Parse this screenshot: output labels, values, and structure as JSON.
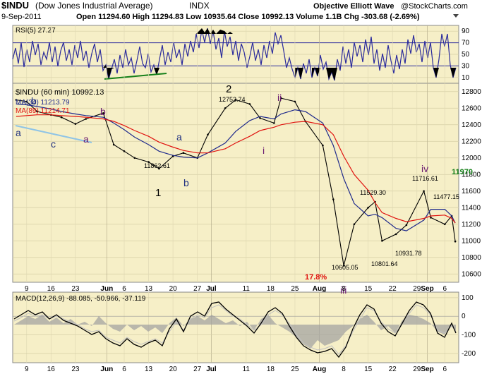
{
  "header": {
    "symbol": "$INDU",
    "name": "(Dow Jones Industrial Average)",
    "exchange": "INDX",
    "date": "9-Sep-2011",
    "quote": "Open 11294.60  High 11294.83  Low 10935.64  Close 10992.13  Volume 1.1B  Chg -303.68 (-2.69%)",
    "brand": "Objective Elliott Wave",
    "site": "@StockCharts.com"
  },
  "colors": {
    "panel_bg": "#f6efc7",
    "price": "#000000",
    "ma34": "#1f2a8c",
    "ma89": "#e0130f",
    "rsi": "#2a2a9c",
    "macd": "#000000",
    "histogram": "#a0a0a0",
    "wave_blue": "#203080",
    "wave_purple": "#6a1a70",
    "wave_green": "#16801a",
    "trendline_blue": "#8fc4e6"
  },
  "rsi_panel": {
    "label": "RSI(5) 27.27",
    "ticks": [
      "90",
      "70",
      "50",
      "30",
      "10"
    ]
  },
  "price_panel": {
    "label": "$INDU (60 min) 10992.13",
    "ma34_label": "MA(34) 11213.79",
    "ma89_label": "MA(89) 11214.71",
    "ticks": [
      "12800",
      "12600",
      "12400",
      "12200",
      "12000",
      "11800",
      "11600",
      "11400",
      "11200",
      "11000",
      "10800",
      "10600"
    ],
    "price_labels": [
      "12753.74",
      "11862.61",
      "11529.30",
      "10605.05",
      "10801.64",
      "10931.78",
      "11716.61",
      "11477.15"
    ],
    "waves": [
      "a",
      "b",
      "c",
      "a",
      "b",
      "a",
      "b",
      "1",
      "2",
      "i",
      "ii",
      "iii",
      "iv"
    ],
    "target": "11970",
    "pct_drop": "17.8%"
  },
  "macd_panel": {
    "label": "MACD(12,26,9) -88.085, -50.966, -37.119",
    "ticks": [
      "100",
      "0",
      "-100",
      "-200"
    ]
  },
  "xaxis": {
    "labels": [
      "9",
      "16",
      "23",
      "Jun",
      "6",
      "13",
      "20",
      "27",
      "Jul",
      "11",
      "18",
      "25",
      "Aug",
      "8",
      "15",
      "22",
      "29",
      "Sep",
      "6"
    ]
  },
  "chart_data": {
    "type": "line",
    "title": "$INDU (Dow Jones Industrial Average) INDX",
    "ylim": [
      10500,
      12900
    ],
    "x_dates": [
      "2011-05-06",
      "2011-05-09",
      "2011-05-12",
      "2011-05-16",
      "2011-05-19",
      "2011-05-23",
      "2011-05-26",
      "2011-05-31",
      "2011-06-03",
      "2011-06-06",
      "2011-06-09",
      "2011-06-13",
      "2011-06-16",
      "2011-06-20",
      "2011-06-23",
      "2011-06-27",
      "2011-06-30",
      "2011-07-05",
      "2011-07-08",
      "2011-07-12",
      "2011-07-15",
      "2011-07-19",
      "2011-07-21",
      "2011-07-25",
      "2011-07-28",
      "2011-08-02",
      "2011-08-05",
      "2011-08-08",
      "2011-08-11",
      "2011-08-15",
      "2011-08-17",
      "2011-08-19",
      "2011-08-23",
      "2011-08-26",
      "2011-08-31",
      "2011-09-02",
      "2011-09-06",
      "2011-09-08",
      "2011-09-09"
    ],
    "series": [
      {
        "name": "$INDU",
        "values": [
          12700,
          12680,
          12560,
          12520,
          12490,
          12410,
          12470,
          12540,
          12160,
          12080,
          12000,
          11950,
          11870,
          12020,
          12060,
          12000,
          12280,
          12600,
          12700,
          12650,
          12480,
          12420,
          12720,
          12680,
          12440,
          12150,
          11500,
          10700,
          11200,
          11400,
          11470,
          11000,
          11080,
          11190,
          11600,
          11280,
          11200,
          11300,
          10992
        ]
      },
      {
        "name": "MA(34)",
        "values": [
          12650,
          12640,
          12620,
          12590,
          12560,
          12530,
          12510,
          12490,
          12420,
          12340,
          12250,
          12160,
          12080,
          12030,
          12010,
          12000,
          12060,
          12180,
          12320,
          12450,
          12500,
          12470,
          12530,
          12580,
          12560,
          12420,
          12150,
          11750,
          11450,
          11300,
          11320,
          11280,
          11150,
          11120,
          11250,
          11380,
          11380,
          11300,
          11214
        ]
      },
      {
        "name": "MA(89)",
        "values": [
          12500,
          12510,
          12520,
          12520,
          12510,
          12500,
          12490,
          12470,
          12440,
          12390,
          12330,
          12260,
          12190,
          12130,
          12090,
          12060,
          12060,
          12110,
          12180,
          12260,
          12330,
          12370,
          12400,
          12430,
          12440,
          12400,
          12280,
          12020,
          11800,
          11610,
          11460,
          11340,
          11270,
          11230,
          11270,
          11300,
          11310,
          11270,
          11215
        ]
      }
    ]
  }
}
